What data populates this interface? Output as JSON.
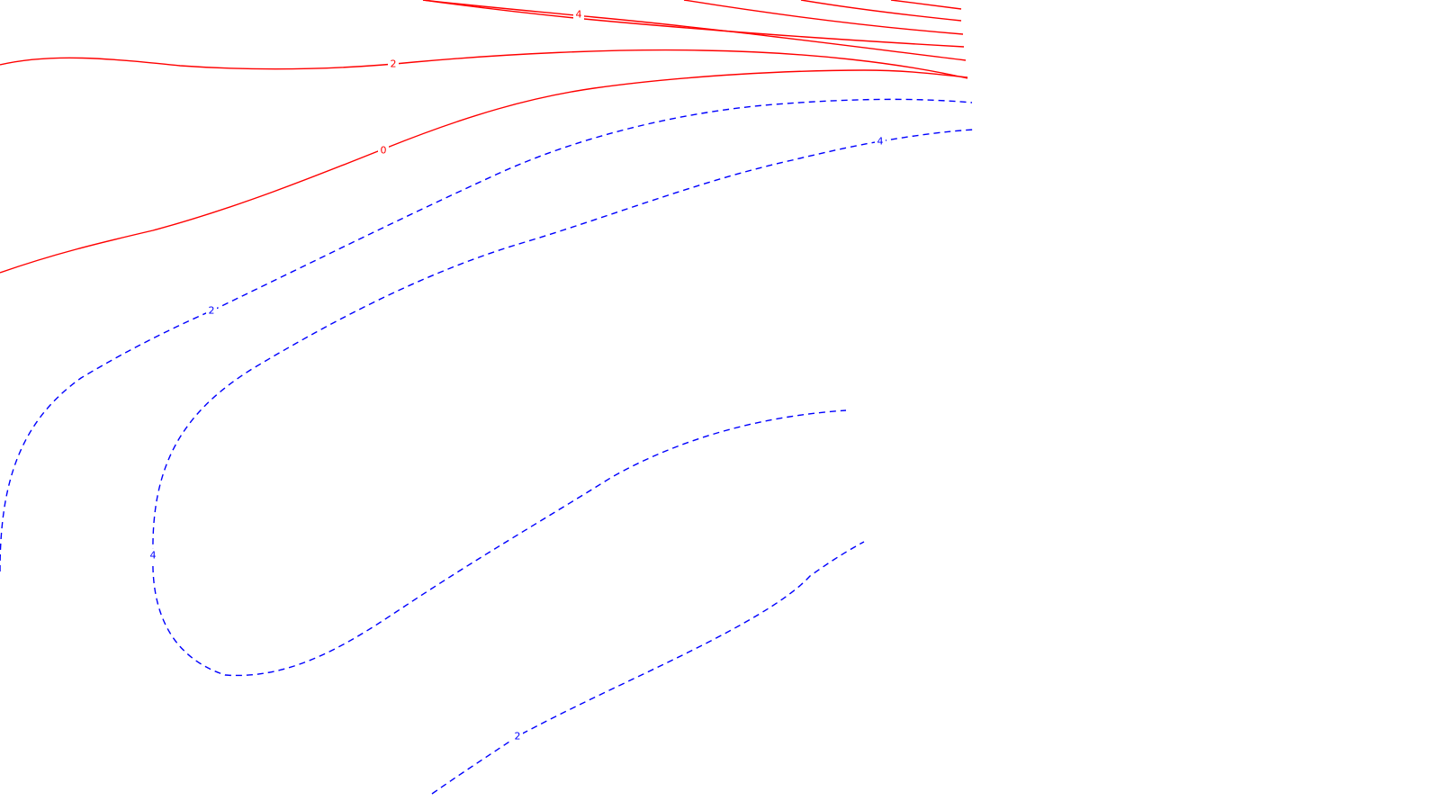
{
  "chart_data": {
    "type": "contour",
    "title": "",
    "xlabel": "",
    "ylabel": "",
    "grid": false,
    "legend": "none",
    "colors": {
      "positive": "#ff0000",
      "negative": "#0000ff",
      "background": "#ffffff"
    },
    "line_styles": {
      "positive": "solid",
      "negative": "dashed"
    },
    "contours": [
      {
        "id": "pos-4",
        "level": 4,
        "sign": "positive",
        "label": "4"
      },
      {
        "id": "pos-2",
        "level": 2,
        "sign": "positive",
        "label": "2"
      },
      {
        "id": "pos-0",
        "level": 0,
        "sign": "positive",
        "label": "0"
      },
      {
        "id": "neg-2-upper",
        "level": -2,
        "sign": "negative",
        "label": "2"
      },
      {
        "id": "neg-4",
        "level": -4,
        "sign": "negative",
        "label": "4"
      },
      {
        "id": "neg-4-right",
        "level": -4,
        "sign": "negative",
        "label": "4"
      },
      {
        "id": "neg-2-lower",
        "level": -2,
        "sign": "negative",
        "label": "2"
      },
      {
        "id": "pos-6",
        "level": 6,
        "sign": "positive",
        "label": ""
      },
      {
        "id": "pos-8",
        "level": 8,
        "sign": "positive",
        "label": ""
      },
      {
        "id": "pos-10",
        "level": 10,
        "sign": "positive",
        "label": ""
      },
      {
        "id": "pos-12",
        "level": 12,
        "sign": "positive",
        "label": ""
      }
    ]
  }
}
